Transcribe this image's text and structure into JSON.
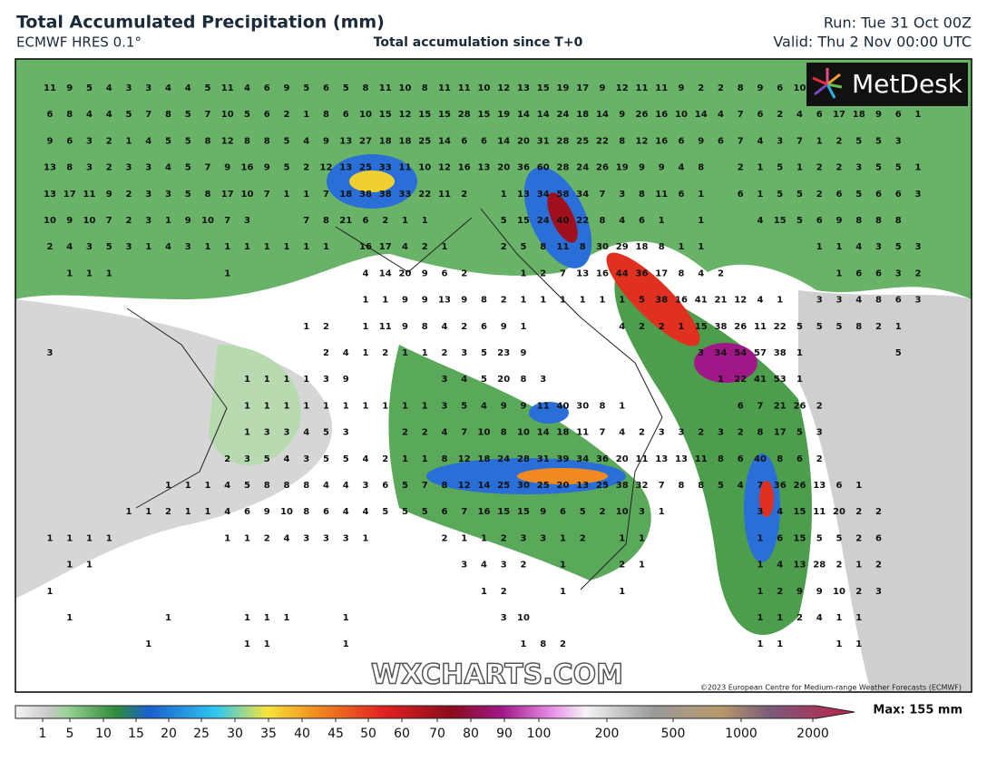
{
  "header": {
    "title": "Total Accumulated Precipitation (mm)",
    "model": "ECMWF HRES 0.1°",
    "subtitle": "Total accumulation since T+0",
    "run": "Run: Tue 31 Oct 00Z",
    "valid": "Valid: Thu 2 Nov 00:00 UTC"
  },
  "logo": "MetDesk",
  "watermark": "WXCHARTS.COM",
  "copyright": "©2023 European Centre for Medium-range Weather Forecasts (ECMWF)",
  "colorbar": {
    "ticks": [
      1,
      5,
      10,
      15,
      20,
      25,
      30,
      35,
      40,
      45,
      50,
      60,
      70,
      80,
      90,
      100,
      200,
      500,
      1000,
      2000
    ],
    "max_label": "Max: 155 mm"
  },
  "grid_values": [
    [
      11,
      9,
      5,
      4,
      3,
      3,
      4,
      4,
      5,
      11,
      4,
      6,
      9,
      5,
      6,
      5,
      8,
      11,
      10,
      8,
      11,
      11,
      10,
      12,
      13,
      15,
      19,
      17,
      9,
      12,
      11,
      11,
      9,
      2,
      2,
      8,
      9,
      6,
      10
    ],
    [
      6,
      8,
      4,
      4,
      5,
      7,
      8,
      5,
      7,
      10,
      5,
      6,
      2,
      1,
      8,
      6,
      10,
      15,
      12,
      15,
      15,
      28,
      15,
      19,
      14,
      14,
      24,
      18,
      14,
      9,
      26,
      16,
      10,
      14,
      4,
      7,
      6,
      2,
      4,
      6,
      17,
      18,
      9,
      6,
      1
    ],
    [
      9,
      6,
      3,
      2,
      1,
      4,
      5,
      5,
      8,
      12,
      8,
      8,
      5,
      4,
      9,
      13,
      27,
      18,
      18,
      25,
      14,
      6,
      6,
      14,
      20,
      31,
      28,
      25,
      22,
      8,
      12,
      16,
      6,
      9,
      6,
      7,
      4,
      3,
      7,
      1,
      2,
      5,
      5,
      3
    ],
    [
      13,
      8,
      3,
      2,
      3,
      3,
      4,
      5,
      7,
      9,
      16,
      9,
      5,
      2,
      12,
      13,
      25,
      33,
      11,
      10,
      12,
      16,
      13,
      20,
      36,
      60,
      28,
      24,
      26,
      19,
      9,
      9,
      4,
      8,
      null,
      2,
      1,
      5,
      1,
      2,
      2,
      3,
      5,
      5,
      1
    ],
    [
      13,
      17,
      11,
      9,
      2,
      3,
      3,
      5,
      8,
      17,
      10,
      7,
      1,
      1,
      7,
      18,
      38,
      38,
      33,
      22,
      11,
      2,
      null,
      1,
      13,
      34,
      58,
      34,
      7,
      3,
      8,
      11,
      6,
      1,
      null,
      6,
      1,
      5,
      5,
      2,
      6,
      5,
      6,
      6,
      3
    ],
    [
      10,
      9,
      10,
      7,
      2,
      3,
      1,
      9,
      10,
      7,
      3,
      null,
      null,
      7,
      8,
      21,
      6,
      2,
      1,
      1,
      null,
      null,
      null,
      5,
      15,
      24,
      40,
      22,
      8,
      4,
      6,
      1,
      null,
      1,
      null,
      null,
      4,
      15,
      5,
      6,
      9,
      8,
      8,
      8
    ],
    [
      2,
      4,
      3,
      5,
      3,
      1,
      4,
      3,
      1,
      1,
      1,
      1,
      1,
      1,
      1,
      null,
      16,
      17,
      4,
      2,
      1,
      null,
      null,
      2,
      5,
      8,
      11,
      8,
      30,
      29,
      18,
      8,
      1,
      1,
      null,
      null,
      null,
      null,
      null,
      1,
      1,
      4,
      3,
      5,
      3
    ],
    [
      null,
      1,
      1,
      1,
      null,
      null,
      null,
      null,
      null,
      1,
      null,
      null,
      null,
      null,
      null,
      null,
      4,
      14,
      20,
      9,
      6,
      2,
      null,
      null,
      1,
      2,
      7,
      13,
      16,
      44,
      36,
      17,
      8,
      4,
      2,
      null,
      null,
      null,
      null,
      null,
      1,
      6,
      6,
      3,
      2
    ],
    [
      null,
      null,
      null,
      null,
      null,
      null,
      null,
      null,
      null,
      null,
      null,
      null,
      null,
      null,
      null,
      null,
      1,
      1,
      9,
      9,
      13,
      9,
      8,
      2,
      1,
      1,
      1,
      1,
      1,
      1,
      5,
      38,
      16,
      41,
      21,
      12,
      4,
      1,
      null,
      3,
      3,
      4,
      8,
      6,
      3
    ],
    [
      null,
      null,
      null,
      null,
      null,
      null,
      null,
      null,
      null,
      null,
      null,
      null,
      null,
      1,
      2,
      null,
      1,
      11,
      9,
      8,
      4,
      2,
      6,
      9,
      1,
      null,
      null,
      null,
      null,
      4,
      2,
      2,
      1,
      15,
      38,
      26,
      11,
      22,
      5,
      5,
      5,
      8,
      2,
      1
    ],
    [
      3,
      null,
      null,
      null,
      null,
      null,
      null,
      null,
      null,
      null,
      null,
      null,
      null,
      null,
      2,
      4,
      1,
      2,
      1,
      1,
      2,
      3,
      5,
      23,
      9,
      null,
      null,
      null,
      null,
      null,
      null,
      null,
      null,
      3,
      34,
      54,
      57,
      38,
      1,
      null,
      null,
      null,
      null,
      5
    ],
    [
      null,
      null,
      null,
      null,
      null,
      null,
      null,
      null,
      null,
      null,
      1,
      1,
      1,
      1,
      3,
      9,
      null,
      null,
      null,
      null,
      3,
      4,
      5,
      20,
      8,
      3,
      null,
      null,
      null,
      null,
      null,
      null,
      null,
      null,
      1,
      22,
      41,
      53,
      1
    ],
    [
      null,
      null,
      null,
      null,
      null,
      null,
      null,
      null,
      null,
      null,
      1,
      1,
      1,
      1,
      1,
      1,
      1,
      1,
      1,
      1,
      3,
      5,
      4,
      9,
      9,
      11,
      40,
      30,
      8,
      1,
      null,
      null,
      null,
      null,
      null,
      6,
      7,
      21,
      26,
      2
    ],
    [
      null,
      null,
      null,
      null,
      null,
      null,
      null,
      null,
      null,
      null,
      1,
      3,
      3,
      4,
      5,
      3,
      null,
      null,
      2,
      2,
      4,
      7,
      10,
      8,
      10,
      14,
      18,
      11,
      7,
      4,
      2,
      3,
      3,
      2,
      3,
      2,
      8,
      17,
      5,
      3
    ],
    [
      null,
      null,
      null,
      null,
      null,
      null,
      null,
      null,
      null,
      2,
      3,
      5,
      4,
      3,
      5,
      5,
      4,
      2,
      1,
      1,
      8,
      12,
      18,
      24,
      28,
      31,
      39,
      34,
      36,
      20,
      11,
      13,
      13,
      11,
      8,
      6,
      40,
      8,
      6,
      2
    ],
    [
      null,
      null,
      null,
      null,
      null,
      null,
      1,
      1,
      1,
      4,
      5,
      8,
      8,
      8,
      4,
      4,
      3,
      6,
      5,
      7,
      8,
      12,
      14,
      25,
      30,
      25,
      20,
      13,
      25,
      38,
      32,
      7,
      8,
      8,
      5,
      4,
      7,
      36,
      26,
      13,
      6,
      1
    ],
    [
      null,
      null,
      null,
      null,
      1,
      1,
      2,
      1,
      1,
      4,
      6,
      9,
      10,
      8,
      6,
      4,
      4,
      5,
      5,
      5,
      6,
      7,
      16,
      15,
      15,
      9,
      6,
      5,
      2,
      10,
      3,
      1,
      null,
      null,
      null,
      null,
      3,
      4,
      15,
      11,
      20,
      2,
      2
    ],
    [
      1,
      1,
      1,
      1,
      null,
      null,
      null,
      null,
      null,
      1,
      1,
      2,
      4,
      3,
      3,
      3,
      1,
      null,
      null,
      null,
      2,
      1,
      1,
      2,
      3,
      3,
      1,
      2,
      null,
      1,
      1,
      null,
      null,
      null,
      null,
      null,
      1,
      6,
      15,
      5,
      5,
      2,
      6
    ],
    [
      null,
      1,
      1,
      null,
      null,
      null,
      null,
      null,
      null,
      null,
      null,
      null,
      null,
      null,
      null,
      null,
      null,
      null,
      null,
      null,
      null,
      3,
      4,
      3,
      2,
      null,
      1,
      null,
      null,
      2,
      1,
      null,
      null,
      null,
      null,
      null,
      1,
      4,
      13,
      28,
      2,
      1,
      2
    ],
    [
      1,
      null,
      null,
      null,
      null,
      null,
      null,
      null,
      null,
      null,
      null,
      null,
      null,
      null,
      null,
      null,
      null,
      null,
      null,
      null,
      null,
      null,
      1,
      2,
      null,
      null,
      1,
      null,
      null,
      1,
      null,
      null,
      null,
      null,
      null,
      null,
      1,
      2,
      9,
      9,
      10,
      2,
      3
    ],
    [
      null,
      1,
      null,
      null,
      null,
      null,
      1,
      null,
      null,
      null,
      1,
      1,
      1,
      null,
      null,
      1,
      null,
      null,
      null,
      null,
      null,
      null,
      null,
      3,
      10,
      null,
      null,
      null,
      null,
      null,
      null,
      null,
      null,
      null,
      null,
      null,
      1,
      1,
      2,
      4,
      1,
      1
    ],
    [
      null,
      null,
      null,
      null,
      null,
      1,
      null,
      null,
      null,
      null,
      1,
      1,
      null,
      null,
      null,
      1,
      null,
      null,
      null,
      null,
      null,
      null,
      null,
      null,
      1,
      8,
      2,
      null,
      null,
      null,
      null,
      null,
      null,
      null,
      null,
      null,
      1,
      1,
      null,
      null,
      1,
      1
    ]
  ]
}
